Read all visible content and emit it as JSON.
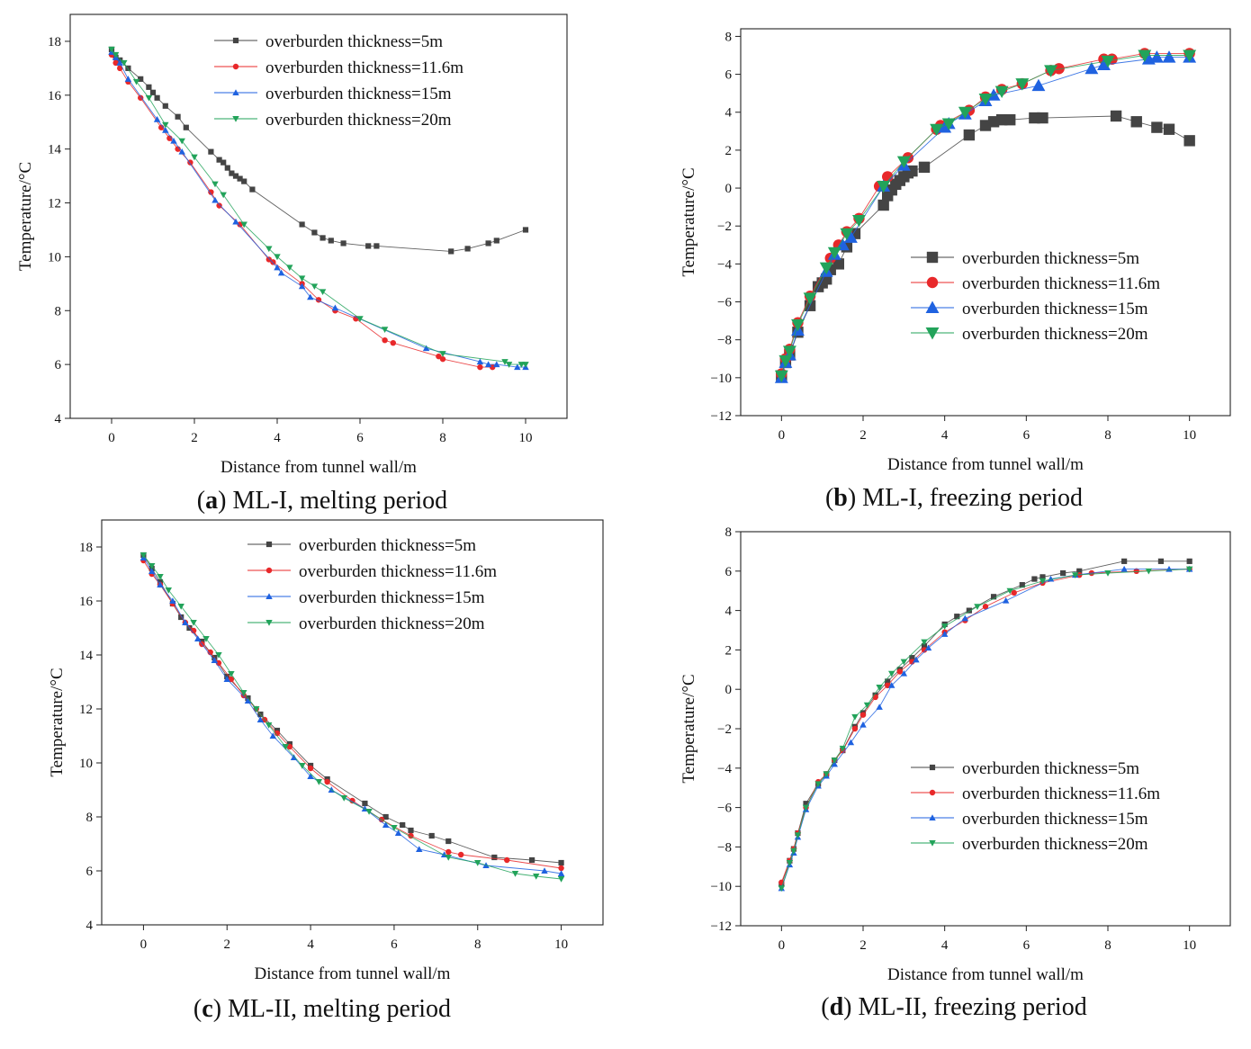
{
  "series_styles": [
    {
      "color": "#444444",
      "marker": "square"
    },
    {
      "color": "#e8282a",
      "marker": "circle"
    },
    {
      "color": "#1f62e0",
      "marker": "triangle-up"
    },
    {
      "color": "#22a35a",
      "marker": "triangle-down"
    }
  ],
  "chart_data": [
    {
      "type": "line",
      "panel_letter": "a",
      "caption": "ML-I, melting period",
      "xlabel": "Distance from tunnel wall/m",
      "ylabel": "Temperature/°C",
      "xlim": [
        -1,
        11
      ],
      "ylim": [
        4,
        19
      ],
      "xticks": [
        0,
        2,
        4,
        6,
        8,
        10
      ],
      "yticks": [
        4,
        6,
        8,
        10,
        12,
        14,
        16,
        18
      ],
      "grid": false,
      "legend_position": "top-right",
      "series": [
        {
          "name": "overburden thickness=5m",
          "x": [
            0,
            0.1,
            0.2,
            0.4,
            0.7,
            0.9,
            1.0,
            1.1,
            1.3,
            1.6,
            1.8,
            2.4,
            2.6,
            2.7,
            2.8,
            2.9,
            3.0,
            3.1,
            3.2,
            3.4,
            4.6,
            4.9,
            5.1,
            5.3,
            5.6,
            6.2,
            6.4,
            8.2,
            8.6,
            9.1,
            9.3,
            10.0
          ],
          "y": [
            17.7,
            17.4,
            17.3,
            17.0,
            16.6,
            16.3,
            16.1,
            15.9,
            15.6,
            15.2,
            14.8,
            13.9,
            13.6,
            13.5,
            13.3,
            13.1,
            13.0,
            12.9,
            12.8,
            12.5,
            11.2,
            10.9,
            10.7,
            10.6,
            10.5,
            10.4,
            10.4,
            10.2,
            10.3,
            10.5,
            10.6,
            11.0
          ]
        },
        {
          "name": "overburden thickness=11.6m",
          "x": [
            0,
            0.1,
            0.2,
            0.4,
            0.7,
            1.2,
            1.4,
            1.6,
            1.9,
            2.4,
            2.6,
            3.1,
            3.8,
            3.9,
            4.6,
            5.0,
            5.4,
            5.9,
            6.6,
            6.8,
            7.9,
            8.0,
            8.9,
            9.2
          ],
          "y": [
            17.5,
            17.2,
            17.0,
            16.5,
            15.9,
            14.8,
            14.4,
            14.0,
            13.5,
            12.4,
            11.9,
            11.2,
            9.9,
            9.8,
            9.0,
            8.4,
            8.0,
            7.7,
            6.9,
            6.8,
            6.3,
            6.2,
            5.9,
            5.9
          ]
        },
        {
          "name": "overburden thickness=15m",
          "x": [
            0,
            0.1,
            0.2,
            0.4,
            1.1,
            1.3,
            1.5,
            1.7,
            2.5,
            3.0,
            4.0,
            4.1,
            4.6,
            4.8,
            5.4,
            7.6,
            8.9,
            9.1,
            9.3,
            9.8,
            10.0
          ],
          "y": [
            17.6,
            17.4,
            17.2,
            16.6,
            15.1,
            14.7,
            14.3,
            13.9,
            12.1,
            11.3,
            9.6,
            9.4,
            8.9,
            8.5,
            8.1,
            6.6,
            6.1,
            6.0,
            6.0,
            5.9,
            5.9
          ]
        },
        {
          "name": "overburden thickness=20m",
          "x": [
            0,
            0.1,
            0.3,
            0.6,
            0.9,
            1.3,
            1.7,
            2.0,
            2.5,
            2.7,
            3.2,
            3.8,
            4.0,
            4.3,
            4.6,
            4.9,
            5.1,
            6.0,
            6.6,
            8.0,
            9.5,
            9.6,
            9.9,
            10.0
          ],
          "y": [
            17.7,
            17.5,
            17.2,
            16.5,
            15.9,
            14.9,
            14.3,
            13.7,
            12.7,
            12.3,
            11.2,
            10.3,
            10.0,
            9.6,
            9.2,
            8.9,
            8.7,
            7.7,
            7.3,
            6.4,
            6.1,
            6.0,
            6.0,
            6.0
          ]
        }
      ]
    },
    {
      "type": "line",
      "panel_letter": "b",
      "caption": "ML-I, freezing period",
      "xlabel": "Distance from tunnel wall/m",
      "ylabel": "Temperature/°C",
      "xlim": [
        -1,
        11
      ],
      "ylim": [
        -12,
        8.4
      ],
      "xticks": [
        0,
        2,
        4,
        6,
        8,
        10
      ],
      "yticks": [
        -12,
        -10,
        -8,
        -6,
        -4,
        -2,
        0,
        2,
        4,
        6,
        8
      ],
      "grid": false,
      "legend_position": "bottom-right",
      "series": [
        {
          "name": "overburden thickness=5m",
          "x": [
            0,
            0.1,
            0.2,
            0.4,
            0.7,
            0.9,
            1.0,
            1.1,
            1.2,
            1.4,
            1.6,
            1.8,
            2.5,
            2.6,
            2.7,
            2.8,
            2.9,
            3.0,
            3.1,
            3.2,
            3.5,
            4.6,
            5.0,
            5.2,
            5.4,
            5.6,
            6.2,
            6.4,
            8.2,
            8.7,
            9.2,
            9.5,
            10.0
          ],
          "y": [
            -9.9,
            -9.2,
            -8.8,
            -7.6,
            -6.2,
            -5.2,
            -5.0,
            -4.8,
            -4.3,
            -4.0,
            -3.1,
            -2.4,
            -0.9,
            -0.4,
            -0.1,
            0.2,
            0.4,
            0.6,
            0.8,
            0.9,
            1.1,
            2.8,
            3.3,
            3.5,
            3.6,
            3.6,
            3.7,
            3.7,
            3.8,
            3.5,
            3.2,
            3.1,
            2.5
          ]
        },
        {
          "name": "overburden thickness=11.6m",
          "x": [
            0,
            0.1,
            0.2,
            0.4,
            0.7,
            1.2,
            1.4,
            1.6,
            1.9,
            2.4,
            2.6,
            3.1,
            3.8,
            3.9,
            4.6,
            5.0,
            5.4,
            5.9,
            6.6,
            6.8,
            7.9,
            8.1,
            8.9,
            10.0
          ],
          "y": [
            -9.8,
            -9.0,
            -8.5,
            -7.1,
            -5.7,
            -3.7,
            -3.0,
            -2.3,
            -1.6,
            0.1,
            0.6,
            1.6,
            3.1,
            3.3,
            4.1,
            4.8,
            5.2,
            5.5,
            6.2,
            6.3,
            6.8,
            6.8,
            7.1,
            7.1
          ]
        },
        {
          "name": "overburden thickness=15m",
          "x": [
            0,
            0.1,
            0.2,
            0.4,
            1.1,
            1.3,
            1.5,
            1.7,
            2.5,
            3.0,
            4.0,
            4.1,
            4.5,
            5.0,
            5.2,
            6.3,
            7.6,
            7.9,
            9.0,
            9.2,
            9.5,
            10.0
          ],
          "y": [
            -10.0,
            -9.2,
            -8.8,
            -7.5,
            -4.4,
            -3.5,
            -3.0,
            -2.6,
            0.1,
            1.2,
            3.2,
            3.4,
            3.9,
            4.6,
            4.9,
            5.4,
            6.3,
            6.5,
            6.8,
            6.9,
            6.9,
            6.9
          ]
        },
        {
          "name": "overburden thickness=20m",
          "x": [
            0,
            0.1,
            0.2,
            0.4,
            0.7,
            1.1,
            1.3,
            1.6,
            1.9,
            2.5,
            3.0,
            3.8,
            4.1,
            4.5,
            5.0,
            5.4,
            5.9,
            6.6,
            8.0,
            8.9,
            10.0
          ],
          "y": [
            -9.9,
            -9.1,
            -8.6,
            -7.2,
            -5.8,
            -4.2,
            -3.4,
            -2.4,
            -1.7,
            0.1,
            1.4,
            3.1,
            3.4,
            4.0,
            4.7,
            5.1,
            5.5,
            6.2,
            6.7,
            7.0,
            7.0
          ]
        }
      ]
    },
    {
      "type": "line",
      "panel_letter": "c",
      "caption": "ML-II, melting period",
      "xlabel": "Distance from tunnel wall/m",
      "ylabel": "Temperature/°C",
      "xlim": [
        -1,
        11
      ],
      "ylim": [
        4,
        19
      ],
      "xticks": [
        0,
        2,
        4,
        6,
        8,
        10
      ],
      "yticks": [
        4,
        6,
        8,
        10,
        12,
        14,
        16,
        18
      ],
      "grid": false,
      "legend_position": "top-right",
      "series": [
        {
          "name": "overburden thickness=5m",
          "x": [
            0,
            0.2,
            0.4,
            0.7,
            0.9,
            1.1,
            1.4,
            1.7,
            2.0,
            2.5,
            2.8,
            3.2,
            3.5,
            4.0,
            4.4,
            5.3,
            5.8,
            6.2,
            6.4,
            6.9,
            7.3,
            8.4,
            9.3,
            10.0
          ],
          "y": [
            17.7,
            17.2,
            16.7,
            15.9,
            15.4,
            15.0,
            14.5,
            13.9,
            13.2,
            12.4,
            11.8,
            11.2,
            10.7,
            9.9,
            9.4,
            8.5,
            8.0,
            7.7,
            7.5,
            7.3,
            7.1,
            6.5,
            6.4,
            6.3
          ]
        },
        {
          "name": "overburden thickness=11.6m",
          "x": [
            0,
            0.2,
            0.4,
            0.7,
            1.0,
            1.2,
            1.4,
            1.6,
            1.8,
            2.1,
            2.4,
            2.7,
            2.9,
            3.2,
            3.5,
            4.0,
            4.4,
            5.0,
            5.7,
            6.4,
            7.3,
            7.6,
            8.7,
            10.0
          ],
          "y": [
            17.5,
            17.0,
            16.6,
            15.9,
            15.2,
            14.9,
            14.4,
            14.1,
            13.7,
            13.1,
            12.5,
            12.0,
            11.6,
            11.1,
            10.6,
            9.8,
            9.3,
            8.6,
            7.9,
            7.3,
            6.7,
            6.6,
            6.4,
            6.1
          ]
        },
        {
          "name": "overburden thickness=15m",
          "x": [
            0,
            0.2,
            0.4,
            0.7,
            1.0,
            1.3,
            1.7,
            2.0,
            2.5,
            2.8,
            3.1,
            3.6,
            4.0,
            4.5,
            5.3,
            5.8,
            6.1,
            6.6,
            7.2,
            8.2,
            9.6,
            10.0
          ],
          "y": [
            17.6,
            17.1,
            16.6,
            16.0,
            15.2,
            14.6,
            13.8,
            13.1,
            12.3,
            11.6,
            11.0,
            10.2,
            9.5,
            9.0,
            8.3,
            7.7,
            7.4,
            6.8,
            6.6,
            6.2,
            6.0,
            5.9
          ]
        },
        {
          "name": "overburden thickness=20m",
          "x": [
            0,
            0.2,
            0.4,
            0.6,
            0.9,
            1.2,
            1.5,
            1.8,
            2.1,
            2.4,
            2.7,
            3.0,
            3.4,
            3.8,
            4.2,
            4.8,
            5.4,
            6.0,
            7.3,
            8.0,
            8.9,
            9.4,
            10.0
          ],
          "y": [
            17.7,
            17.3,
            16.9,
            16.4,
            15.8,
            15.2,
            14.6,
            14.0,
            13.3,
            12.6,
            12.0,
            11.4,
            10.6,
            9.9,
            9.3,
            8.7,
            8.2,
            7.6,
            6.5,
            6.3,
            5.9,
            5.8,
            5.7
          ]
        }
      ]
    },
    {
      "type": "line",
      "panel_letter": "d",
      "caption": "ML-II, freezing period",
      "xlabel": "Distance from tunnel wall/m",
      "ylabel": "Temperature/°C",
      "xlim": [
        -1,
        11
      ],
      "ylim": [
        -12,
        8
      ],
      "xticks": [
        0,
        2,
        4,
        6,
        8,
        10
      ],
      "yticks": [
        -12,
        -10,
        -8,
        -6,
        -4,
        -2,
        0,
        2,
        4,
        6,
        8
      ],
      "grid": false,
      "legend_position": "bottom-right",
      "series": [
        {
          "name": "overburden thickness=5m",
          "x": [
            0,
            0.2,
            0.3,
            0.4,
            0.6,
            0.9,
            1.1,
            1.3,
            1.5,
            1.8,
            2.0,
            2.3,
            2.6,
            2.9,
            3.2,
            3.5,
            4.0,
            4.3,
            4.6,
            5.2,
            5.9,
            6.2,
            6.4,
            6.9,
            7.3,
            8.4,
            9.3,
            10.0
          ],
          "y": [
            -9.9,
            -8.7,
            -8.1,
            -7.3,
            -5.8,
            -4.8,
            -4.3,
            -3.6,
            -3.1,
            -1.9,
            -1.2,
            -0.3,
            0.4,
            1.0,
            1.6,
            2.2,
            3.3,
            3.7,
            4.0,
            4.7,
            5.3,
            5.6,
            5.7,
            5.9,
            6.0,
            6.5,
            6.5,
            6.5
          ]
        },
        {
          "name": "overburden thickness=11.6m",
          "x": [
            0,
            0.2,
            0.3,
            0.4,
            0.6,
            0.9,
            1.1,
            1.3,
            1.5,
            1.8,
            2.0,
            2.3,
            2.6,
            2.9,
            3.2,
            3.5,
            4.0,
            4.5,
            5.0,
            5.7,
            6.4,
            7.3,
            7.6,
            8.7,
            10.0
          ],
          "y": [
            -9.8,
            -8.7,
            -8.1,
            -7.3,
            -6.0,
            -4.7,
            -4.3,
            -3.6,
            -3.1,
            -2.0,
            -1.3,
            -0.4,
            0.2,
            0.9,
            1.4,
            2.0,
            2.9,
            3.5,
            4.2,
            4.9,
            5.4,
            5.8,
            5.9,
            6.0,
            6.1
          ]
        },
        {
          "name": "overburden thickness=15m",
          "x": [
            0,
            0.2,
            0.3,
            0.4,
            0.6,
            0.9,
            1.1,
            1.3,
            1.7,
            2.0,
            2.4,
            2.7,
            3.0,
            3.3,
            3.6,
            4.0,
            4.5,
            5.5,
            6.6,
            7.2,
            8.4,
            9.5,
            10.0
          ],
          "y": [
            -10.1,
            -8.9,
            -8.3,
            -7.5,
            -6.1,
            -4.9,
            -4.4,
            -3.8,
            -2.7,
            -1.8,
            -0.9,
            0.2,
            0.8,
            1.5,
            2.1,
            2.8,
            3.6,
            4.5,
            5.6,
            5.8,
            6.1,
            6.1,
            6.1
          ]
        },
        {
          "name": "overburden thickness=20m",
          "x": [
            0,
            0.2,
            0.3,
            0.4,
            0.6,
            0.9,
            1.1,
            1.3,
            1.5,
            1.8,
            2.1,
            2.4,
            2.7,
            3.0,
            3.5,
            4.0,
            4.8,
            5.6,
            6.4,
            7.2,
            8.0,
            9.0,
            10.0
          ],
          "y": [
            -10.1,
            -8.8,
            -8.2,
            -7.4,
            -6.0,
            -4.8,
            -4.3,
            -3.6,
            -3.0,
            -1.4,
            -0.8,
            0.1,
            0.8,
            1.4,
            2.4,
            3.2,
            4.2,
            5.0,
            5.5,
            5.8,
            5.9,
            6.0,
            6.1
          ]
        }
      ]
    }
  ]
}
